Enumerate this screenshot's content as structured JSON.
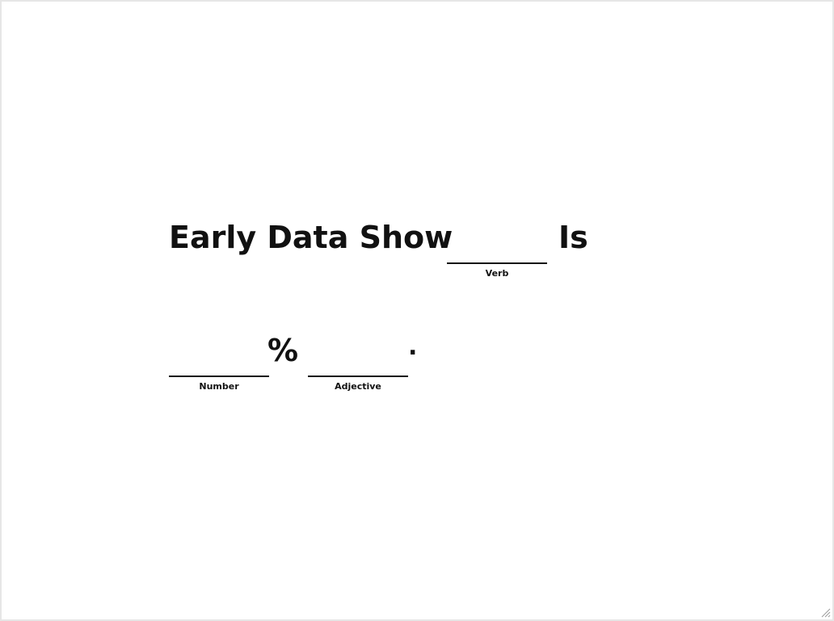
{
  "headline": {
    "line1": {
      "text_before": "Early Data Show",
      "blank_verb": {
        "value": "",
        "hint": "Verb"
      },
      "text_after": "Is"
    },
    "line2": {
      "blank_number": {
        "value": "",
        "hint": "Number"
      },
      "percent_sign": "%",
      "blank_adjective": {
        "value": "",
        "hint": "Adjective"
      },
      "period": "."
    }
  },
  "colors": {
    "text": "#111111",
    "background": "#ffffff",
    "border": "#e6e6e6"
  },
  "icons": {
    "resize_grip": "resize-grip-icon"
  }
}
